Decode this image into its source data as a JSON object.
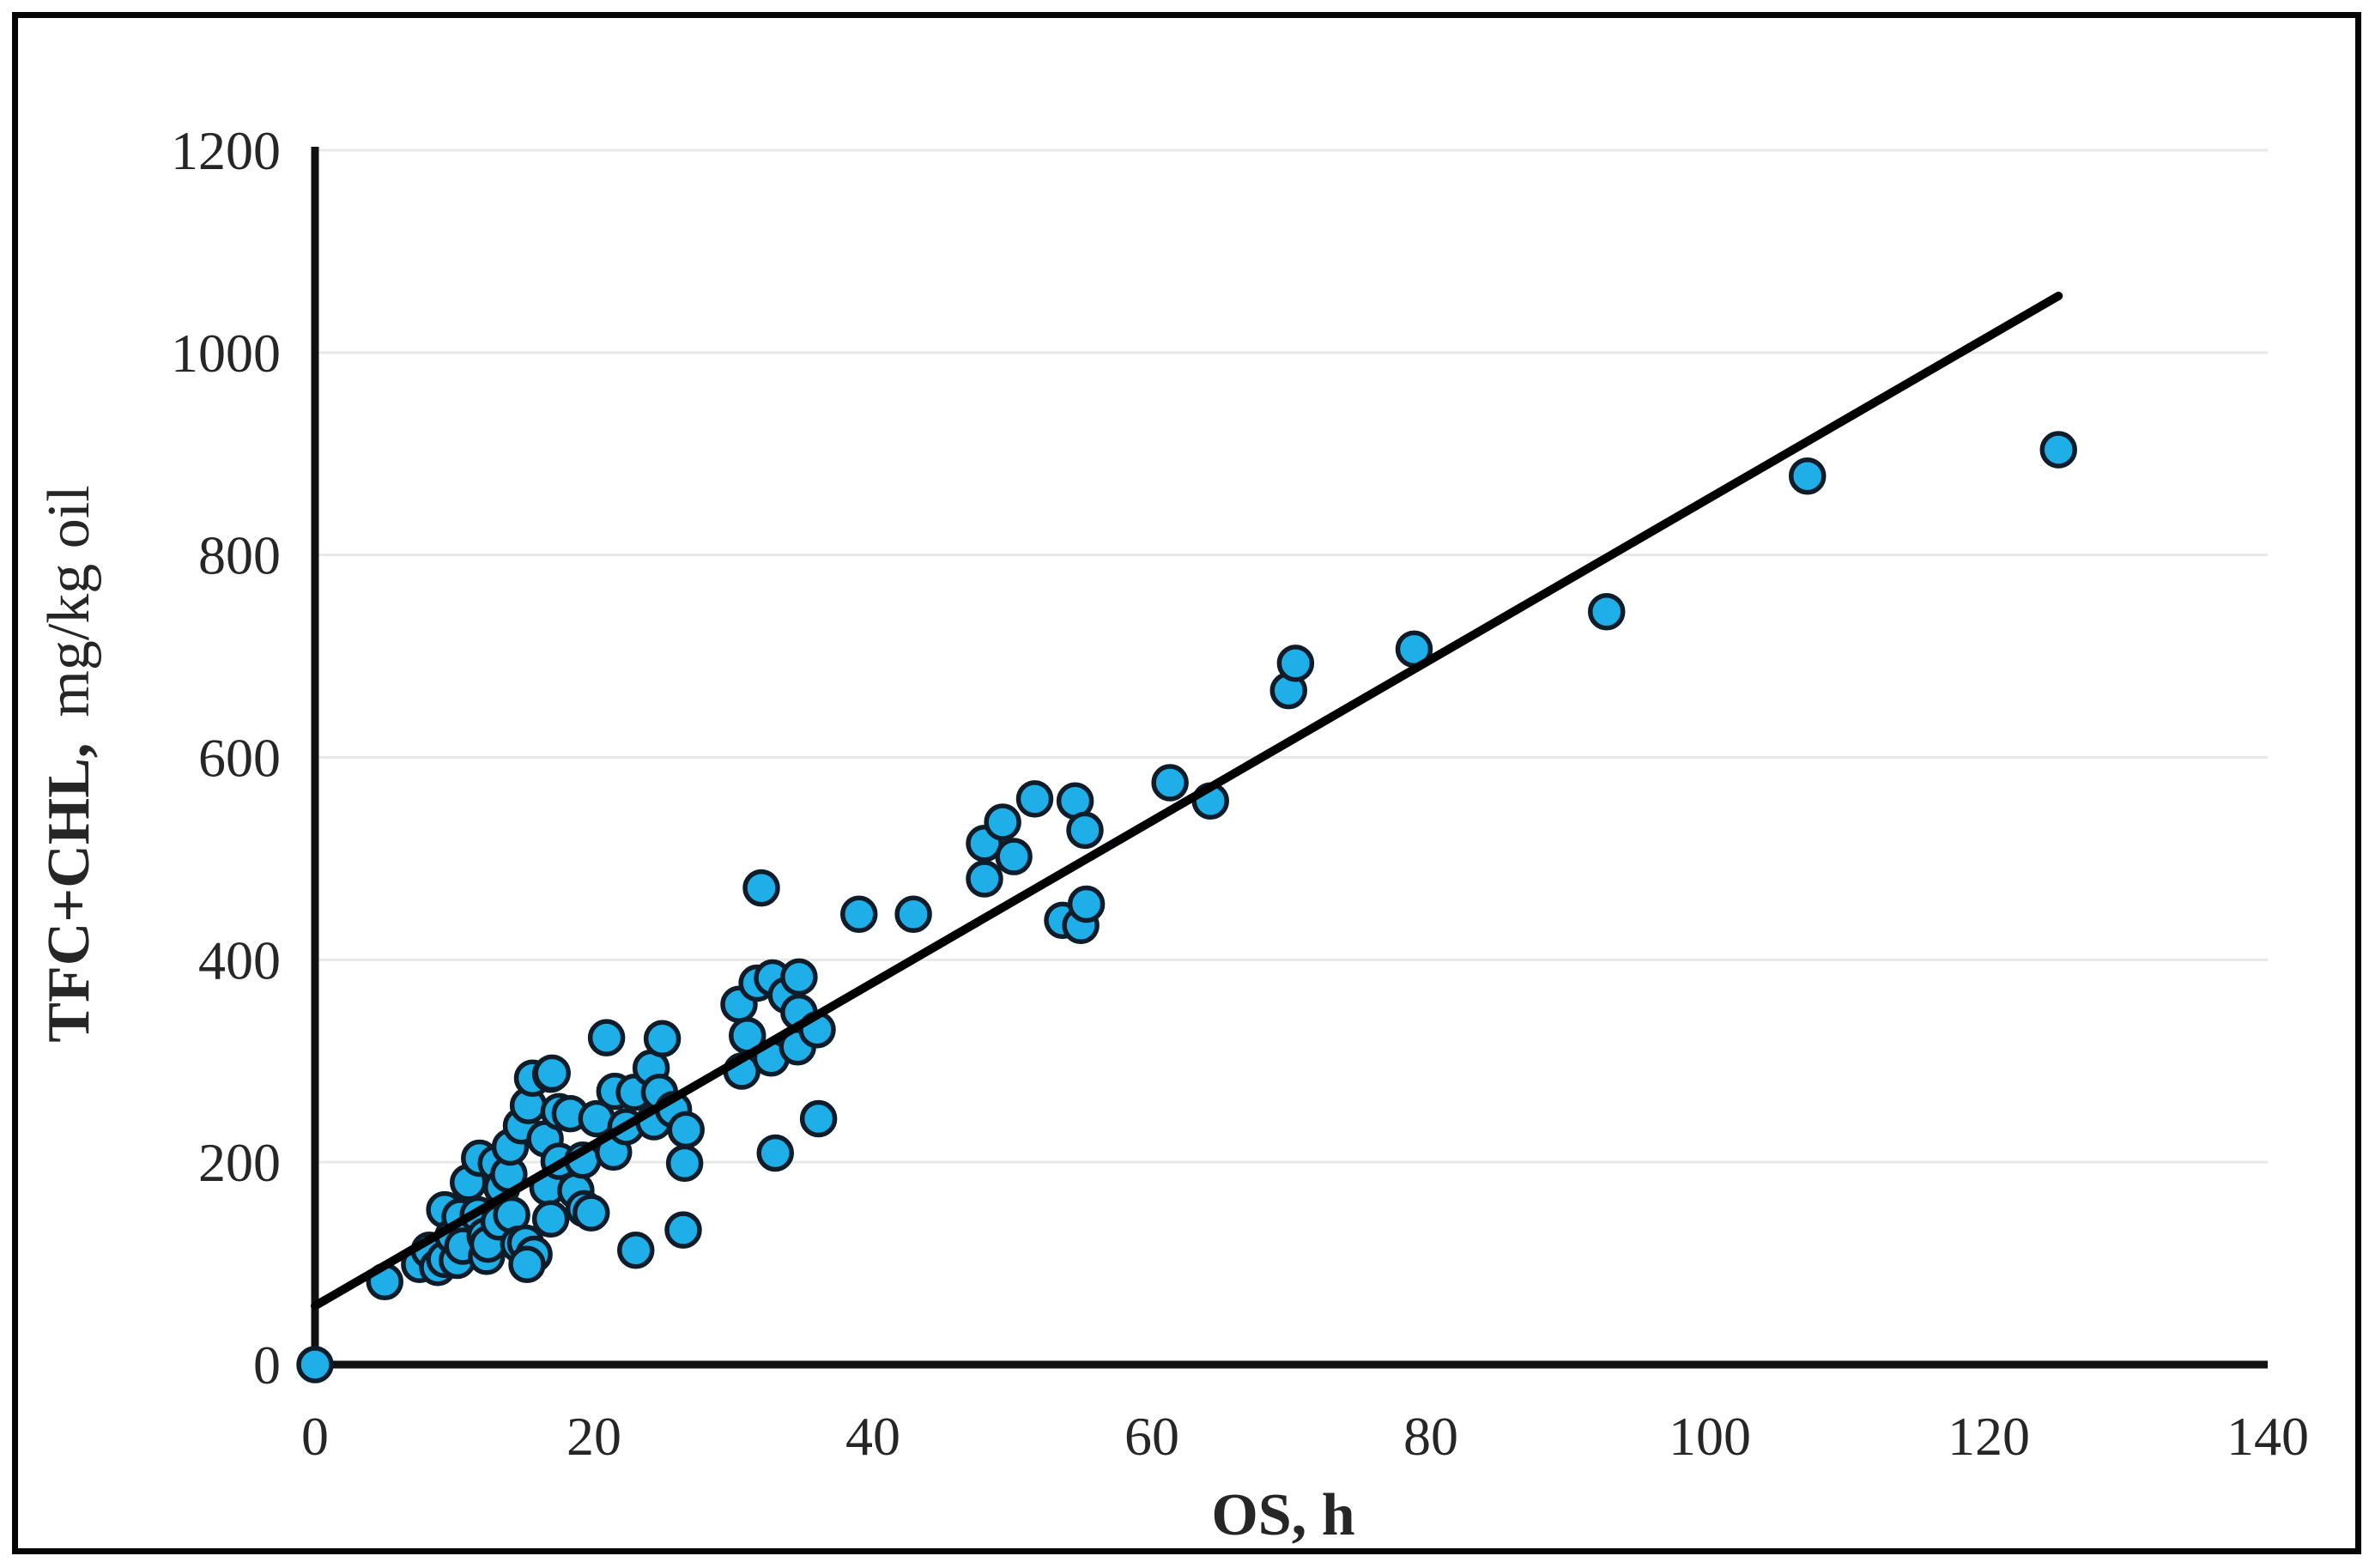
{
  "figure": {
    "background": "#ffffff",
    "border_color": "#050505"
  },
  "chart_data": {
    "type": "scatter",
    "title": "",
    "xlabel": "OS, h",
    "ylabel_bold": "TFC+CHL,",
    "ylabel_rest": "mg/kg oil",
    "xlim": [
      0,
      140
    ],
    "ylim": [
      0,
      1200
    ],
    "xticks": [
      0,
      20,
      40,
      60,
      80,
      100,
      120,
      140
    ],
    "yticks": [
      0,
      200,
      400,
      600,
      800,
      1000,
      1200
    ],
    "grid": "horizontal-only",
    "gridline_color": "#e8e8e8",
    "axis_color": "#111111",
    "legend": "none",
    "marker": {
      "shape": "circle",
      "fill": "#1FAFE8",
      "stroke": "#0e1d29"
    },
    "trendline": {
      "color": "#000000",
      "x1": 0,
      "y1": 58,
      "x2": 125,
      "y2": 1056
    },
    "points": [
      [
        0,
        0
      ],
      [
        5,
        82
      ],
      [
        7.5,
        99
      ],
      [
        8.2,
        113
      ],
      [
        8.8,
        96
      ],
      [
        9.3,
        104
      ],
      [
        9.3,
        153
      ],
      [
        9.9,
        127
      ],
      [
        10.2,
        103
      ],
      [
        10.4,
        146
      ],
      [
        10.6,
        117
      ],
      [
        11,
        180
      ],
      [
        11.7,
        148
      ],
      [
        11.8,
        204
      ],
      [
        12.2,
        127
      ],
      [
        12.3,
        107
      ],
      [
        12.4,
        119
      ],
      [
        13,
        199
      ],
      [
        13.2,
        141
      ],
      [
        13.4,
        175
      ],
      [
        13.9,
        188
      ],
      [
        14,
        215
      ],
      [
        14.1,
        148
      ],
      [
        14.6,
        119
      ],
      [
        14.8,
        236
      ],
      [
        15.1,
        120
      ],
      [
        15.7,
        109
      ],
      [
        15.2,
        99
      ],
      [
        15.3,
        256
      ],
      [
        15.6,
        283
      ],
      [
        16.5,
        223
      ],
      [
        16.7,
        175
      ],
      [
        16.9,
        287
      ],
      [
        16.9,
        144
      ],
      [
        17,
        288
      ],
      [
        17.5,
        201
      ],
      [
        17.5,
        250
      ],
      [
        18.3,
        248
      ],
      [
        18.7,
        172
      ],
      [
        19.2,
        202
      ],
      [
        19.3,
        154
      ],
      [
        19.8,
        150
      ],
      [
        20.2,
        243
      ],
      [
        20.9,
        323
      ],
      [
        21.4,
        210
      ],
      [
        21.5,
        270
      ],
      [
        22.3,
        235
      ],
      [
        22.9,
        269
      ],
      [
        23,
        113
      ],
      [
        24.1,
        293
      ],
      [
        24.3,
        240
      ],
      [
        24.7,
        269
      ],
      [
        24.9,
        322
      ],
      [
        25.7,
        252
      ],
      [
        26.4,
        133
      ],
      [
        26.5,
        199
      ],
      [
        26.6,
        232
      ],
      [
        30.4,
        356
      ],
      [
        30.6,
        290
      ],
      [
        31,
        325
      ],
      [
        31.7,
        377
      ],
      [
        32.7,
        303
      ],
      [
        32.8,
        382
      ],
      [
        33,
        209
      ],
      [
        33.8,
        365
      ],
      [
        34.6,
        314
      ],
      [
        34.7,
        348
      ],
      [
        34.7,
        383
      ],
      [
        36,
        331
      ],
      [
        36.1,
        243
      ],
      [
        32,
        471
      ],
      [
        39,
        445
      ],
      [
        42.9,
        445
      ],
      [
        48,
        480
      ],
      [
        48,
        515
      ],
      [
        49.3,
        536
      ],
      [
        50.1,
        502
      ],
      [
        51.6,
        559
      ],
      [
        53.6,
        439
      ],
      [
        54.5,
        557
      ],
      [
        54.9,
        434
      ],
      [
        55.2,
        528
      ],
      [
        55.3,
        455
      ],
      [
        61.3,
        575
      ],
      [
        64.2,
        557
      ],
      [
        69.8,
        666
      ],
      [
        70.3,
        693
      ],
      [
        78.8,
        707
      ],
      [
        92.6,
        744
      ],
      [
        107,
        878
      ],
      [
        125,
        904
      ]
    ]
  }
}
